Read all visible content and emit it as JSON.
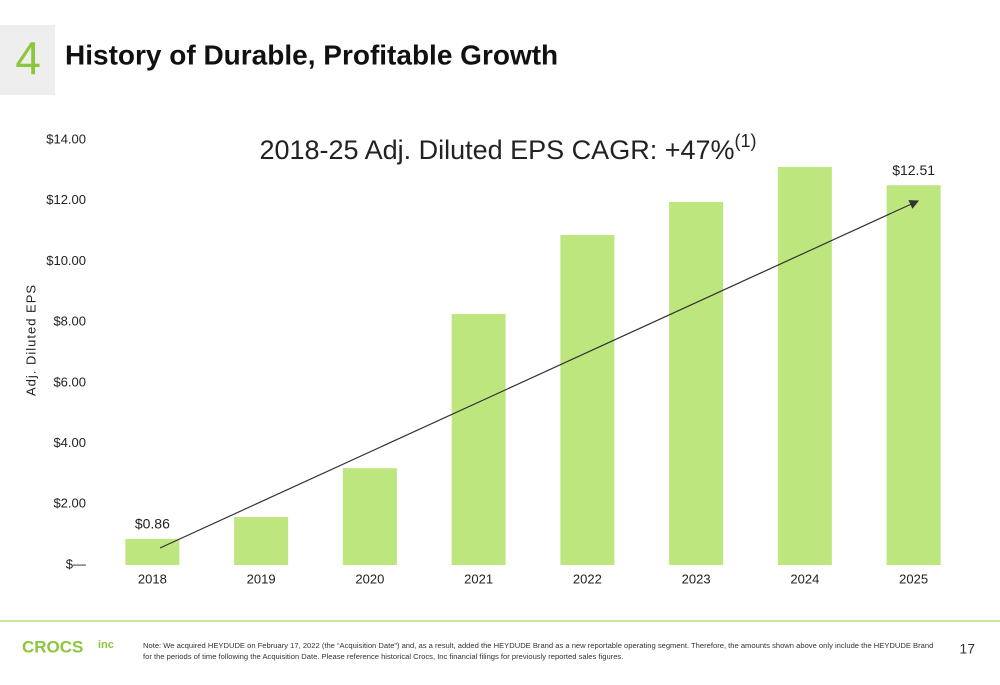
{
  "slide_number": "4",
  "title": "History of Durable, Profitable Growth",
  "logo": "CROCS",
  "logo_suffix": "inc",
  "footnote": "Note: We acquired HEYDUDE on February 17, 2022 (the “Acquisition Date”) and, as a result, added the HEYDUDE Brand as a new reportable operating segment. Therefore, the amounts shown above only include the HEYDUDE Brand for the periods of time following the Acquisition Date. Please reference historical Crocs, Inc financial filings for previously reported sales figures.",
  "page_number": "17",
  "chart_data": {
    "type": "bar",
    "annotation": "2018-25 Adj. Diluted EPS CAGR: +47%",
    "annotation_sup": "(1)",
    "y_label": "Adj. Diluted EPS",
    "categories": [
      "2018",
      "2019",
      "2020",
      "2021",
      "2022",
      "2023",
      "2024",
      "2025"
    ],
    "values": [
      0.86,
      1.58,
      3.19,
      8.27,
      10.87,
      11.96,
      13.11,
      12.51
    ],
    "value_labels": [
      "$0.86",
      null,
      null,
      null,
      null,
      null,
      null,
      "$12.51"
    ],
    "color": "#bde67e",
    "ylim": [
      0,
      14
    ],
    "yticks": [
      {
        "value": 0,
        "label": "$—"
      },
      {
        "value": 2,
        "label": "$2.00"
      },
      {
        "value": 4,
        "label": "$4.00"
      },
      {
        "value": 6,
        "label": "$6.00"
      },
      {
        "value": 8,
        "label": "$8.00"
      },
      {
        "value": 10,
        "label": "$10.00"
      },
      {
        "value": 12,
        "label": "$12.00"
      },
      {
        "value": 14,
        "label": "$14.00"
      }
    ]
  }
}
